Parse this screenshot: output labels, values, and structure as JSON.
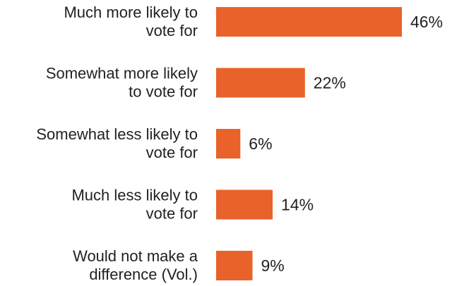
{
  "chart_data": {
    "type": "bar",
    "orientation": "horizontal",
    "categories": [
      [
        "Much more likely to",
        "vote for"
      ],
      [
        "Somewhat more likely",
        "to vote for"
      ],
      [
        "Somewhat less likely to",
        "vote for"
      ],
      [
        "Much less likely to",
        "vote for"
      ],
      [
        "Would not make a",
        "difference (Vol.)"
      ]
    ],
    "values": [
      46,
      22,
      6,
      14,
      9
    ],
    "value_labels": [
      "46%",
      "22%",
      "6%",
      "14%",
      "9%"
    ],
    "xlim": [
      0,
      46
    ],
    "grid": false,
    "legend": "none",
    "bar_color": "#e8622a"
  }
}
